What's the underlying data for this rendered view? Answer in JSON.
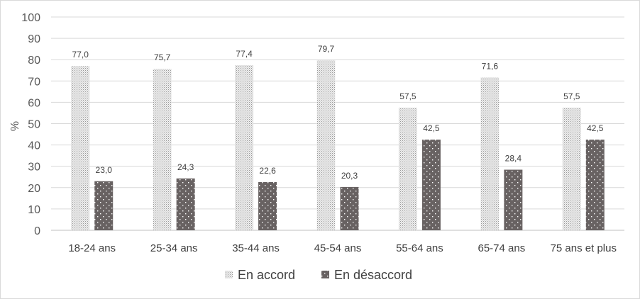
{
  "chart_data": {
    "type": "bar",
    "title": "",
    "xlabel": "",
    "ylabel": "%",
    "ylim": [
      0,
      100
    ],
    "yticks": [
      0,
      10,
      20,
      30,
      40,
      50,
      60,
      70,
      80,
      90,
      100
    ],
    "grid": true,
    "legend_position": "bottom",
    "categories": [
      "18-24 ans",
      "25-34 ans",
      "35-44 ans",
      "45-54 ans",
      "55-64 ans",
      "65-74 ans",
      "75 ans et plus"
    ],
    "series": [
      {
        "name": "En accord",
        "values": [
          77.0,
          75.7,
          77.4,
          79.7,
          57.5,
          71.6,
          57.5
        ],
        "labels": [
          "77,0",
          "75,7",
          "77,4",
          "79,7",
          "57,5",
          "71,6",
          "57,5"
        ],
        "color": "#e8e8e8",
        "pattern": "fine-dots"
      },
      {
        "name": "En désaccord",
        "values": [
          23.0,
          24.3,
          22.6,
          20.3,
          42.5,
          28.4,
          42.5
        ],
        "labels": [
          "23,0",
          "24,3",
          "22,6",
          "20,3",
          "42,5",
          "28,4",
          "42,5"
        ],
        "color": "#6b6464",
        "pattern": "white-dots"
      }
    ]
  }
}
